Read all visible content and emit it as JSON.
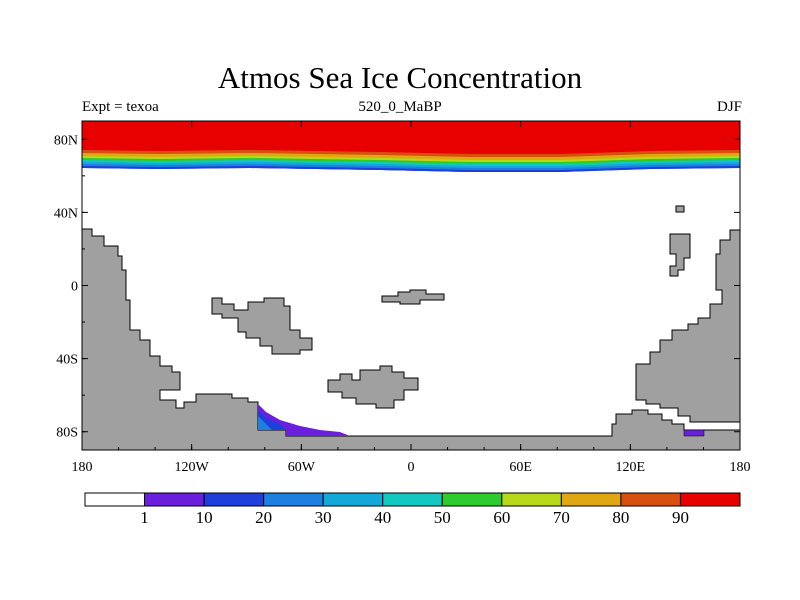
{
  "title": "Atmos Sea Ice Concentration",
  "subtitle_left": "Expt = texoa",
  "subtitle_center": "520_0_MaBP",
  "subtitle_right": "DJF",
  "x_axis": {
    "ticks": [
      {
        "lon": -180,
        "label": "180"
      },
      {
        "lon": -120,
        "label": "120W"
      },
      {
        "lon": -60,
        "label": "60W"
      },
      {
        "lon": 0,
        "label": "0"
      },
      {
        "lon": 60,
        "label": "60E"
      },
      {
        "lon": 120,
        "label": "120E"
      },
      {
        "lon": 180,
        "label": "180"
      }
    ]
  },
  "y_axis": {
    "ticks": [
      {
        "lat": 80,
        "label": "80N"
      },
      {
        "lat": 40,
        "label": "40N"
      },
      {
        "lat": 0,
        "label": "0"
      },
      {
        "lat": -40,
        "label": "40S"
      },
      {
        "lat": -80,
        "label": "80S"
      }
    ]
  },
  "colorbar": {
    "colors": [
      "#ffffff",
      "#6a1fdc",
      "#1f3fdc",
      "#1d7fe0",
      "#12a8d8",
      "#12c8c0",
      "#2ecb2e",
      "#b8d81a",
      "#e0a810",
      "#d85010",
      "#e80000"
    ],
    "labels": [
      "1",
      "10",
      "20",
      "30",
      "40",
      "50",
      "60",
      "70",
      "80",
      "90"
    ]
  },
  "land_color": "#a0a0a0",
  "chart_data": {
    "type": "map",
    "variable": "Sea Ice Concentration",
    "units": "%",
    "projection": "cylindrical equidistant",
    "lon_range": [
      -180,
      180
    ],
    "lat_range": [
      -90,
      90
    ],
    "levels": [
      1,
      10,
      20,
      30,
      40,
      50,
      60,
      70,
      80,
      90
    ],
    "northern_ice_edge_lat_approx": 66,
    "northern_ice_90pct_lat_approx": 78,
    "southern_ice": "small patches near 80S, 80W-40W and 150E-160E"
  }
}
